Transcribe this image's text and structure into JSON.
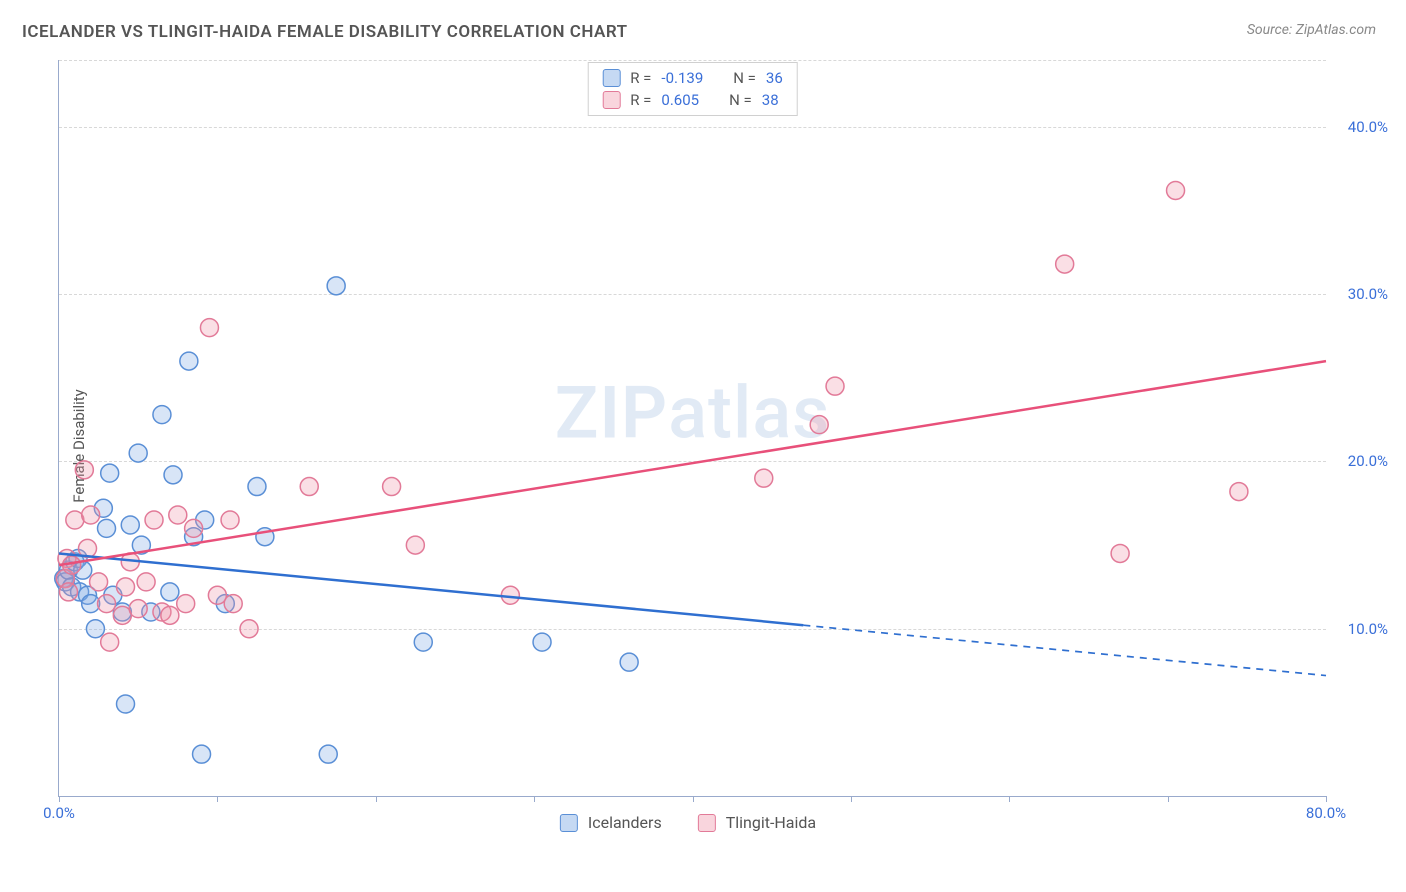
{
  "title": "ICELANDER VS TLINGIT-HAIDA FEMALE DISABILITY CORRELATION CHART",
  "source": "Source: ZipAtlas.com",
  "y_axis_label": "Female Disability",
  "watermark": {
    "bold": "ZIP",
    "rest": "atlas"
  },
  "chart": {
    "type": "scatter",
    "xlim": [
      0,
      80
    ],
    "ylim": [
      0,
      44
    ],
    "x_ticks": [
      0,
      10,
      20,
      30,
      40,
      50,
      60,
      70,
      80
    ],
    "x_tick_labels_shown": {
      "0": "0.0%",
      "80": "80.0%"
    },
    "y_gridlines": [
      10,
      20,
      30,
      40,
      44
    ],
    "y_tick_labels": {
      "10": "10.0%",
      "20": "20.0%",
      "30": "30.0%",
      "40": "40.0%"
    },
    "background_color": "#ffffff",
    "grid_color": "#d8d8d8",
    "axis_color": "#99aacc",
    "label_color": "#3a6fd8",
    "marker_radius": 9,
    "marker_stroke_width": 1.5,
    "line_width": 2.5,
    "series": [
      {
        "name": "Icelanders",
        "fill": "rgba(126,170,228,0.30)",
        "stroke": "#5a8fd6",
        "line_color": "#2f6fd0",
        "R": "-0.139",
        "N": "36",
        "points": [
          {
            "x": 0.3,
            "y": 13.0
          },
          {
            "x": 0.4,
            "y": 12.8
          },
          {
            "x": 0.6,
            "y": 13.5
          },
          {
            "x": 0.8,
            "y": 12.5
          },
          {
            "x": 1.0,
            "y": 14.0
          },
          {
            "x": 1.2,
            "y": 14.2
          },
          {
            "x": 1.3,
            "y": 12.2
          },
          {
            "x": 1.5,
            "y": 13.5
          },
          {
            "x": 1.8,
            "y": 12.0
          },
          {
            "x": 2.0,
            "y": 11.5
          },
          {
            "x": 2.3,
            "y": 10.0
          },
          {
            "x": 2.8,
            "y": 17.2
          },
          {
            "x": 3.0,
            "y": 16.0
          },
          {
            "x": 3.2,
            "y": 19.3
          },
          {
            "x": 3.4,
            "y": 12.0
          },
          {
            "x": 4.0,
            "y": 11.0
          },
          {
            "x": 4.2,
            "y": 5.5
          },
          {
            "x": 4.5,
            "y": 16.2
          },
          {
            "x": 5.0,
            "y": 20.5
          },
          {
            "x": 5.2,
            "y": 15.0
          },
          {
            "x": 5.8,
            "y": 11.0
          },
          {
            "x": 6.5,
            "y": 22.8
          },
          {
            "x": 7.0,
            "y": 12.2
          },
          {
            "x": 7.2,
            "y": 19.2
          },
          {
            "x": 8.2,
            "y": 26.0
          },
          {
            "x": 8.5,
            "y": 15.5
          },
          {
            "x": 9.0,
            "y": 2.5
          },
          {
            "x": 9.2,
            "y": 16.5
          },
          {
            "x": 10.5,
            "y": 11.5
          },
          {
            "x": 12.5,
            "y": 18.5
          },
          {
            "x": 13.0,
            "y": 15.5
          },
          {
            "x": 17.0,
            "y": 2.5
          },
          {
            "x": 17.5,
            "y": 30.5
          },
          {
            "x": 23.0,
            "y": 9.2
          },
          {
            "x": 30.5,
            "y": 9.2
          },
          {
            "x": 36.0,
            "y": 8.0
          }
        ],
        "regression": {
          "x1": 0,
          "y1": 14.5,
          "x2": 80,
          "y2": 7.2,
          "solid_until_x": 47
        }
      },
      {
        "name": "Tlingit-Haida",
        "fill": "rgba(240,150,170,0.30)",
        "stroke": "#e27a98",
        "line_color": "#e8507a",
        "R": "0.605",
        "N": "38",
        "points": [
          {
            "x": 0.4,
            "y": 13.0
          },
          {
            "x": 0.5,
            "y": 14.2
          },
          {
            "x": 0.6,
            "y": 12.2
          },
          {
            "x": 0.8,
            "y": 13.8
          },
          {
            "x": 1.0,
            "y": 16.5
          },
          {
            "x": 1.6,
            "y": 19.5
          },
          {
            "x": 1.8,
            "y": 14.8
          },
          {
            "x": 2.0,
            "y": 16.8
          },
          {
            "x": 2.5,
            "y": 12.8
          },
          {
            "x": 3.0,
            "y": 11.5
          },
          {
            "x": 3.2,
            "y": 9.2
          },
          {
            "x": 4.0,
            "y": 10.8
          },
          {
            "x": 4.2,
            "y": 12.5
          },
          {
            "x": 4.5,
            "y": 14.0
          },
          {
            "x": 5.0,
            "y": 11.2
          },
          {
            "x": 5.5,
            "y": 12.8
          },
          {
            "x": 6.0,
            "y": 16.5
          },
          {
            "x": 6.5,
            "y": 11.0
          },
          {
            "x": 7.0,
            "y": 10.8
          },
          {
            "x": 7.5,
            "y": 16.8
          },
          {
            "x": 8.0,
            "y": 11.5
          },
          {
            "x": 8.5,
            "y": 16.0
          },
          {
            "x": 9.5,
            "y": 28.0
          },
          {
            "x": 10.0,
            "y": 12.0
          },
          {
            "x": 10.8,
            "y": 16.5
          },
          {
            "x": 11.0,
            "y": 11.5
          },
          {
            "x": 12.0,
            "y": 10.0
          },
          {
            "x": 15.8,
            "y": 18.5
          },
          {
            "x": 21.0,
            "y": 18.5
          },
          {
            "x": 22.5,
            "y": 15.0
          },
          {
            "x": 28.5,
            "y": 12.0
          },
          {
            "x": 44.5,
            "y": 19.0
          },
          {
            "x": 48.0,
            "y": 22.2
          },
          {
            "x": 49.0,
            "y": 24.5
          },
          {
            "x": 63.5,
            "y": 31.8
          },
          {
            "x": 67.0,
            "y": 14.5
          },
          {
            "x": 70.5,
            "y": 36.2
          },
          {
            "x": 74.5,
            "y": 18.2
          }
        ],
        "regression": {
          "x1": 0,
          "y1": 13.8,
          "x2": 80,
          "y2": 26.0,
          "solid_until_x": 80
        }
      }
    ]
  },
  "legend_bottom": [
    {
      "label": "Icelanders",
      "swatch": "blue"
    },
    {
      "label": "Tlingit-Haida",
      "swatch": "pink"
    }
  ],
  "legend_top": [
    {
      "swatch": "blue",
      "r_label": "R =",
      "r_value": "-0.139",
      "n_label": "N =",
      "n_value": "36"
    },
    {
      "swatch": "pink",
      "r_label": "R =",
      "r_value": "0.605",
      "n_label": "N =",
      "n_value": "38"
    }
  ]
}
